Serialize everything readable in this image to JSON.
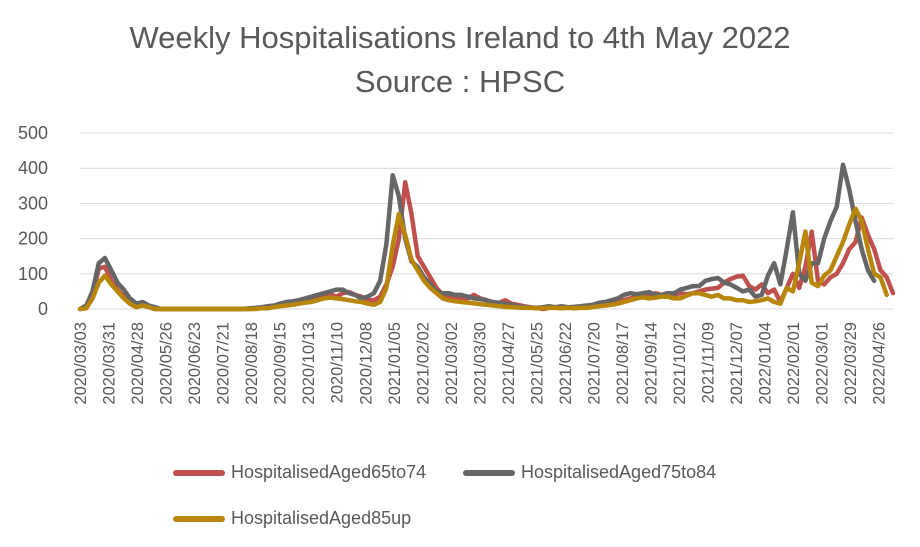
{
  "chart_data": {
    "type": "line",
    "title_line1": "Weekly Hospitalisations Ireland to 4th May 2022",
    "title_line2": "Source : HPSC",
    "ylim": [
      0,
      500
    ],
    "yticks": [
      0,
      100,
      200,
      300,
      400,
      500
    ],
    "grid": true,
    "legend_position": "bottom",
    "x_tick_labels": [
      "2020/03/03",
      "2020/03/31",
      "2020/04/28",
      "2020/05/26",
      "2020/06/23",
      "2020/07/21",
      "2020/08/18",
      "2020/09/15",
      "2020/10/13",
      "2020/11/10",
      "2020/12/08",
      "2021/01/05",
      "2021/02/02",
      "2021/03/02",
      "2021/03/30",
      "2021/04/27",
      "2021/05/25",
      "2021/06/22",
      "2021/07/20",
      "2021/08/17",
      "2021/09/14",
      "2021/10/12",
      "2021/11/09",
      "2021/12/07",
      "2022/01/04",
      "2022/02/01",
      "2022/03/01",
      "2022/03/29",
      "2022/04/26"
    ],
    "series": [
      {
        "name": "HospitalisedAged65to74",
        "color": "#C0504D",
        "values": [
          0,
          5,
          40,
          115,
          120,
          80,
          55,
          35,
          15,
          5,
          15,
          5,
          0,
          0,
          0,
          0,
          0,
          0,
          0,
          0,
          0,
          0,
          0,
          0,
          0,
          0,
          0,
          0,
          2,
          3,
          3,
          8,
          15,
          12,
          18,
          22,
          20,
          25,
          35,
          35,
          42,
          35,
          45,
          48,
          40,
          35,
          25,
          25,
          35,
          70,
          120,
          200,
          360,
          270,
          150,
          120,
          90,
          60,
          40,
          35,
          35,
          30,
          30,
          40,
          30,
          25,
          15,
          18,
          25,
          15,
          12,
          8,
          5,
          3,
          0,
          3,
          5,
          2,
          5,
          3,
          5,
          5,
          8,
          10,
          12,
          15,
          20,
          25,
          30,
          35,
          40,
          38,
          45,
          40,
          45,
          40,
          45,
          42,
          45,
          50,
          55,
          58,
          60,
          75,
          85,
          92,
          95,
          65,
          55,
          70,
          45,
          55,
          20,
          60,
          100,
          60,
          120,
          220,
          80,
          70,
          90,
          100,
          130,
          170,
          190,
          260,
          210,
          170,
          110,
          90,
          45
        ]
      },
      {
        "name": "HospitalisedAged75to84",
        "color": "#666666",
        "values": [
          0,
          10,
          50,
          130,
          145,
          110,
          75,
          55,
          30,
          15,
          20,
          10,
          5,
          0,
          0,
          0,
          0,
          0,
          0,
          0,
          0,
          0,
          0,
          0,
          0,
          0,
          0,
          2,
          3,
          5,
          8,
          10,
          15,
          20,
          22,
          25,
          30,
          35,
          40,
          45,
          50,
          55,
          55,
          45,
          40,
          30,
          35,
          45,
          80,
          185,
          380,
          320,
          200,
          135,
          120,
          90,
          70,
          50,
          45,
          45,
          40,
          40,
          35,
          30,
          28,
          25,
          20,
          18,
          15,
          12,
          8,
          6,
          4,
          3,
          5,
          8,
          5,
          8,
          5,
          6,
          8,
          10,
          12,
          18,
          20,
          25,
          30,
          40,
          45,
          42,
          45,
          48,
          40,
          40,
          45,
          45,
          55,
          60,
          65,
          65,
          80,
          85,
          88,
          75,
          70,
          60,
          50,
          55,
          35,
          40,
          95,
          130,
          70,
          170,
          275,
          100,
          80,
          130,
          130,
          200,
          250,
          290,
          410,
          340,
          250,
          170,
          110,
          80
        ]
      },
      {
        "name": "HospitalisedAged85up",
        "color": "#B8860B",
        "values": [
          0,
          2,
          30,
          75,
          95,
          70,
          50,
          30,
          15,
          5,
          10,
          5,
          0,
          0,
          0,
          0,
          0,
          0,
          0,
          0,
          0,
          0,
          0,
          0,
          0,
          0,
          0,
          0,
          0,
          2,
          2,
          5,
          8,
          10,
          12,
          15,
          18,
          20,
          25,
          30,
          32,
          30,
          28,
          25,
          22,
          20,
          15,
          12,
          20,
          60,
          180,
          270,
          210,
          140,
          110,
          80,
          60,
          45,
          30,
          25,
          22,
          20,
          18,
          16,
          14,
          12,
          10,
          8,
          6,
          5,
          4,
          3,
          3,
          2,
          2,
          3,
          3,
          2,
          3,
          2,
          3,
          3,
          5,
          8,
          10,
          12,
          15,
          20,
          25,
          30,
          33,
          30,
          32,
          35,
          35,
          30,
          30,
          38,
          45,
          45,
          40,
          35,
          40,
          30,
          30,
          25,
          25,
          20,
          22,
          25,
          30,
          20,
          15,
          60,
          50,
          130,
          220,
          75,
          65,
          95,
          110,
          150,
          190,
          240,
          285,
          250,
          170,
          100,
          90,
          40
        ]
      }
    ]
  }
}
